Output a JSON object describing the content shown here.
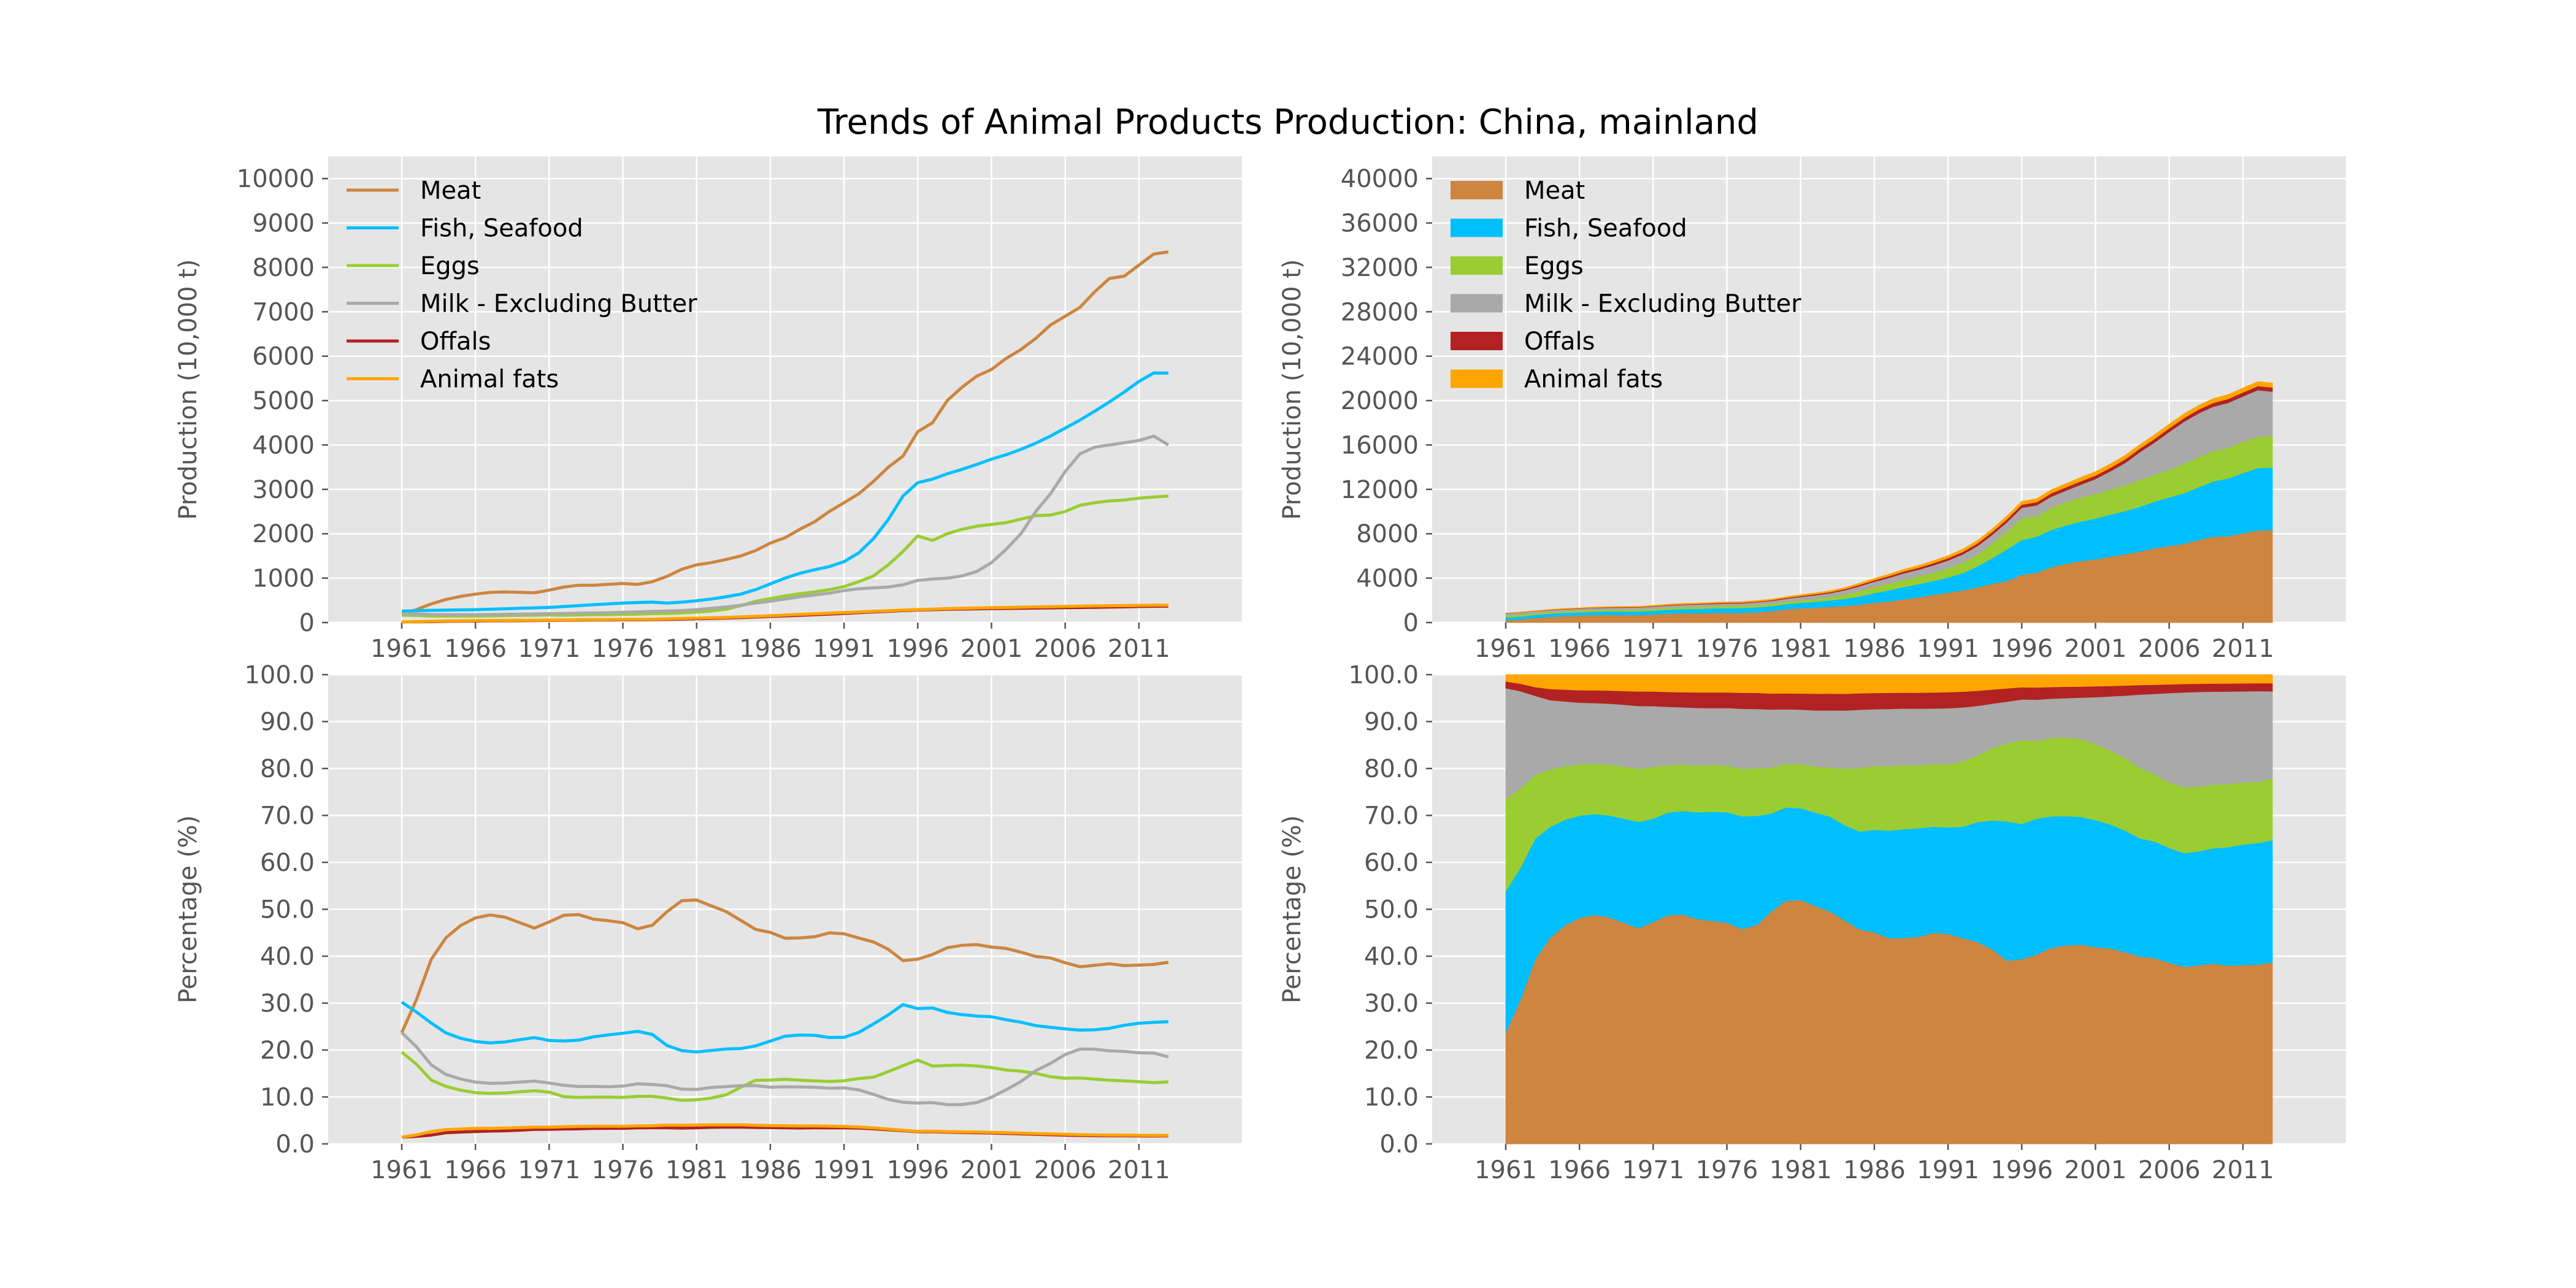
{
  "figure": {
    "title": "Trends of Animal Products Production: China, mainland"
  },
  "series_names": [
    "Meat",
    "Fish, Seafood",
    "Eggs",
    "Milk - Excluding Butter",
    "Offals",
    "Animal fats"
  ],
  "colors": [
    "#cd853f",
    "#00bfff",
    "#9acd32",
    "#a9a9a9",
    "#b22222",
    "#ffa500"
  ],
  "years": [
    1961,
    1962,
    1963,
    1964,
    1965,
    1966,
    1967,
    1968,
    1969,
    1970,
    1971,
    1972,
    1973,
    1974,
    1975,
    1976,
    1977,
    1978,
    1979,
    1980,
    1981,
    1982,
    1983,
    1984,
    1985,
    1986,
    1987,
    1988,
    1989,
    1990,
    1991,
    1992,
    1993,
    1994,
    1995,
    1996,
    1997,
    1998,
    1999,
    2000,
    2001,
    2002,
    2003,
    2004,
    2005,
    2006,
    2007,
    2008,
    2009,
    2010,
    2011,
    2012,
    2013
  ],
  "chart_data": [
    {
      "type": "line",
      "title": "",
      "xlabel": "",
      "ylabel": "Production (10,000 t)",
      "ylim": [
        0,
        10500
      ],
      "yticks": [
        0,
        1000,
        2000,
        3000,
        4000,
        5000,
        6000,
        7000,
        8000,
        9000,
        10000
      ],
      "xticks": [
        "1961",
        "1966",
        "1971",
        "1976",
        "1981",
        "1986",
        "1991",
        "1996",
        "2001",
        "2006",
        "2011"
      ],
      "legend": "top-left",
      "grid": true,
      "series": [
        {
          "name": "Meat",
          "values": [
            200,
            290,
            420,
            520,
            590,
            640,
            680,
            690,
            680,
            670,
            730,
            800,
            840,
            840,
            860,
            880,
            860,
            920,
            1040,
            1200,
            1300,
            1350,
            1420,
            1500,
            1620,
            1790,
            1910,
            2100,
            2270,
            2500,
            2700,
            2900,
            3180,
            3500,
            3750,
            4300,
            4500,
            5000,
            5300,
            5550,
            5700,
            5950,
            6150,
            6400,
            6700,
            6900,
            7100,
            7450,
            7750,
            7800,
            8050,
            8300,
            8350
          ]
        },
        {
          "name": "Fish, Seafood",
          "values": [
            255,
            265,
            275,
            280,
            285,
            290,
            300,
            310,
            320,
            330,
            340,
            360,
            380,
            400,
            420,
            440,
            450,
            460,
            440,
            460,
            490,
            530,
            580,
            640,
            740,
            870,
            1000,
            1110,
            1190,
            1260,
            1370,
            1570,
            1890,
            2320,
            2850,
            3150,
            3230,
            3350,
            3450,
            3560,
            3680,
            3780,
            3900,
            4040,
            4200,
            4380,
            4560,
            4760,
            4970,
            5190,
            5430,
            5620,
            5620
          ]
        },
        {
          "name": "Eggs",
          "values": [
            165,
            160,
            145,
            145,
            145,
            145,
            150,
            155,
            160,
            165,
            170,
            165,
            170,
            175,
            180,
            185,
            190,
            200,
            205,
            215,
            235,
            260,
            300,
            380,
            480,
            540,
            600,
            650,
            690,
            740,
            810,
            920,
            1050,
            1300,
            1600,
            1950,
            1850,
            2000,
            2100,
            2170,
            2210,
            2250,
            2330,
            2410,
            2420,
            2500,
            2640,
            2700,
            2740,
            2760,
            2800,
            2830,
            2850
          ]
        },
        {
          "name": "Milk - Excluding Butter",
          "values": [
            200,
            195,
            180,
            175,
            175,
            175,
            180,
            185,
            190,
            195,
            200,
            205,
            210,
            215,
            220,
            230,
            240,
            250,
            260,
            270,
            290,
            320,
            350,
            390,
            440,
            480,
            530,
            580,
            620,
            660,
            720,
            760,
            780,
            800,
            850,
            950,
            980,
            1000,
            1050,
            1150,
            1350,
            1650,
            2000,
            2500,
            2900,
            3400,
            3800,
            3950,
            4000,
            4050,
            4100,
            4200,
            4000
          ]
        },
        {
          "name": "Offals",
          "values": [
            12,
            15,
            20,
            28,
            32,
            35,
            38,
            40,
            42,
            45,
            48,
            52,
            55,
            58,
            60,
            62,
            64,
            68,
            72,
            78,
            86,
            94,
            102,
            112,
            124,
            138,
            150,
            162,
            176,
            190,
            206,
            222,
            238,
            254,
            270,
            282,
            290,
            298,
            304,
            310,
            314,
            318,
            322,
            326,
            330,
            334,
            338,
            342,
            348,
            354,
            360,
            366,
            370
          ]
        },
        {
          "name": "Animal fats",
          "values": [
            12,
            18,
            28,
            36,
            40,
            44,
            46,
            48,
            50,
            52,
            55,
            60,
            64,
            66,
            68,
            70,
            72,
            76,
            84,
            92,
            100,
            108,
            116,
            128,
            140,
            154,
            168,
            182,
            196,
            210,
            224,
            238,
            252,
            266,
            280,
            292,
            302,
            312,
            320,
            328,
            334,
            340,
            346,
            352,
            358,
            364,
            370,
            374,
            378,
            382,
            386,
            390,
            392
          ]
        }
      ]
    },
    {
      "type": "area",
      "stacked": true,
      "title": "",
      "xlabel": "",
      "ylabel": "Production (10,000 t)",
      "ylim": [
        0,
        42000
      ],
      "yticks": [
        0,
        4000,
        8000,
        12000,
        16000,
        20000,
        24000,
        28000,
        32000,
        36000,
        40000
      ],
      "xticks": [
        "1961",
        "1966",
        "1971",
        "1976",
        "1981",
        "1986",
        "1991",
        "1996",
        "2001",
        "2006",
        "2011"
      ],
      "legend": "top-left",
      "grid": true,
      "series_from": 0
    },
    {
      "type": "line",
      "title": "",
      "xlabel": "",
      "ylabel": "Percentage (%)",
      "ylim": [
        0,
        100
      ],
      "yticks": [
        "0.0",
        "10.0",
        "20.0",
        "30.0",
        "40.0",
        "50.0",
        "60.0",
        "70.0",
        "80.0",
        "90.0",
        "100.0"
      ],
      "xticks": [
        "1961",
        "1966",
        "1971",
        "1976",
        "1981",
        "1986",
        "1991",
        "1996",
        "2001",
        "2006",
        "2011"
      ],
      "grid": true,
      "series_from": 0,
      "mode": "percent"
    },
    {
      "type": "area",
      "stacked": true,
      "title": "",
      "xlabel": "",
      "ylabel": "Percentage (%)",
      "ylim": [
        0,
        100
      ],
      "yticks": [
        "0.0",
        "10.0",
        "20.0",
        "30.0",
        "40.0",
        "50.0",
        "60.0",
        "70.0",
        "80.0",
        "90.0",
        "100.0"
      ],
      "xticks": [
        "1961",
        "1966",
        "1971",
        "1976",
        "1981",
        "1986",
        "1991",
        "1996",
        "2001",
        "2006",
        "2011"
      ],
      "grid": true,
      "series_from": 0,
      "mode": "percent"
    }
  ]
}
